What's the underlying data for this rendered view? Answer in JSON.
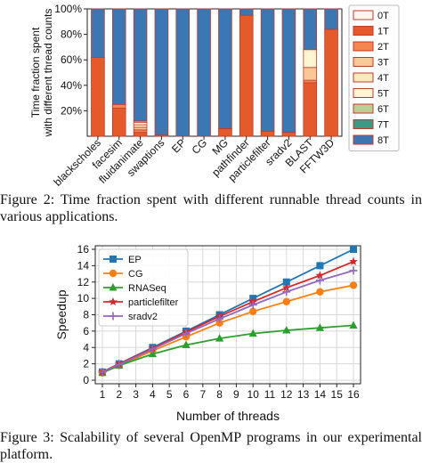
{
  "figure2": {
    "caption": "Figure 2: Time fraction spent with different runnable thread counts in various applications.",
    "chart_data": {
      "type": "bar",
      "stacked": true,
      "ylabel": "Time fraction spent\nwith different thread counts",
      "yticks": [
        "20%",
        "40%",
        "60%",
        "80%",
        "100%"
      ],
      "ylim": [
        0,
        100
      ],
      "categories": [
        "blackscholes",
        "facesim",
        "fluidanimate",
        "swaptions",
        "EP",
        "CG",
        "MG",
        "pathfinder",
        "particlefilter",
        "sradv2",
        "BLAST",
        "FFTW3D"
      ],
      "series": [
        {
          "name": "0T",
          "color": "#fff5eb",
          "values": [
            0,
            0,
            0,
            0,
            0,
            0,
            0,
            0,
            0,
            0,
            0,
            0
          ]
        },
        {
          "name": "1T",
          "color": "#e55a2b",
          "values": [
            62,
            22,
            3,
            1,
            0,
            0,
            6,
            95,
            4,
            3,
            42,
            84
          ]
        },
        {
          "name": "2T",
          "color": "#f4874f",
          "values": [
            0,
            3,
            2,
            0,
            0,
            0,
            0,
            0,
            0,
            0,
            2,
            0
          ]
        },
        {
          "name": "3T",
          "color": "#f9c896",
          "values": [
            0,
            0,
            2,
            0,
            0,
            0,
            0,
            0,
            0,
            0,
            10,
            0
          ]
        },
        {
          "name": "4T",
          "color": "#fce9bd",
          "values": [
            0,
            0,
            2,
            0,
            0,
            0,
            0,
            0,
            0,
            0,
            0,
            0
          ]
        },
        {
          "name": "5T",
          "color": "#fef6d2",
          "values": [
            0,
            0,
            2,
            0,
            0,
            0,
            0,
            0,
            0,
            0,
            14,
            0
          ]
        },
        {
          "name": "6T",
          "color": "#b9cf93",
          "values": [
            0,
            0,
            1,
            0,
            0,
            0,
            0,
            0,
            0,
            0,
            0,
            0
          ]
        },
        {
          "name": "7T",
          "color": "#3a9a86",
          "values": [
            0,
            0,
            0,
            0,
            0,
            0,
            0,
            0,
            0,
            0,
            0,
            0
          ]
        },
        {
          "name": "8T",
          "color": "#3b77b3",
          "values": [
            38,
            75,
            88,
            99,
            100,
            100,
            94,
            5,
            96,
            97,
            32,
            16
          ]
        }
      ],
      "segment_edge_color": "#c0392b"
    }
  },
  "figure3": {
    "caption": "Figure 3: Scalability of several OpenMP programs in our experimental platform.",
    "chart_data": {
      "type": "line",
      "xlabel": "Number of threads",
      "ylabel": "Speedup",
      "x": [
        1,
        2,
        4,
        6,
        8,
        10,
        12,
        14,
        16
      ],
      "xticks": [
        "1",
        "2",
        "3",
        "4",
        "5",
        "6",
        "7",
        "8",
        "9",
        "10",
        "11",
        "12",
        "13",
        "14",
        "15",
        "16"
      ],
      "yticks": [
        "0",
        "2",
        "4",
        "6",
        "8",
        "10",
        "12",
        "14",
        "16"
      ],
      "xlim": [
        1,
        16
      ],
      "ylim": [
        0,
        16
      ],
      "grid": true,
      "legend": "top-left",
      "series": [
        {
          "name": "EP",
          "color": "#1f77b4",
          "marker": "square",
          "values": [
            1,
            2,
            4,
            6,
            8,
            10,
            12,
            14,
            16
          ]
        },
        {
          "name": "CG",
          "color": "#ff7f0e",
          "marker": "circle",
          "values": [
            0.9,
            1.8,
            3.6,
            5.3,
            7,
            8.4,
            9.6,
            10.8,
            11.6
          ]
        },
        {
          "name": "RNASeq",
          "color": "#2ca02c",
          "marker": "triangle",
          "values": [
            0.9,
            1.8,
            3.2,
            4.3,
            5.1,
            5.7,
            6.1,
            6.4,
            6.7
          ]
        },
        {
          "name": "particlefilter",
          "color": "#d62728",
          "marker": "star",
          "values": [
            1,
            2,
            3.9,
            5.9,
            7.8,
            9.6,
            11.3,
            12.8,
            14.5
          ]
        },
        {
          "name": "sradv2",
          "color": "#9467bd",
          "marker": "plus",
          "values": [
            1,
            1.9,
            3.8,
            5.7,
            7.5,
            9.2,
            10.8,
            12.2,
            13.4
          ]
        }
      ]
    }
  }
}
